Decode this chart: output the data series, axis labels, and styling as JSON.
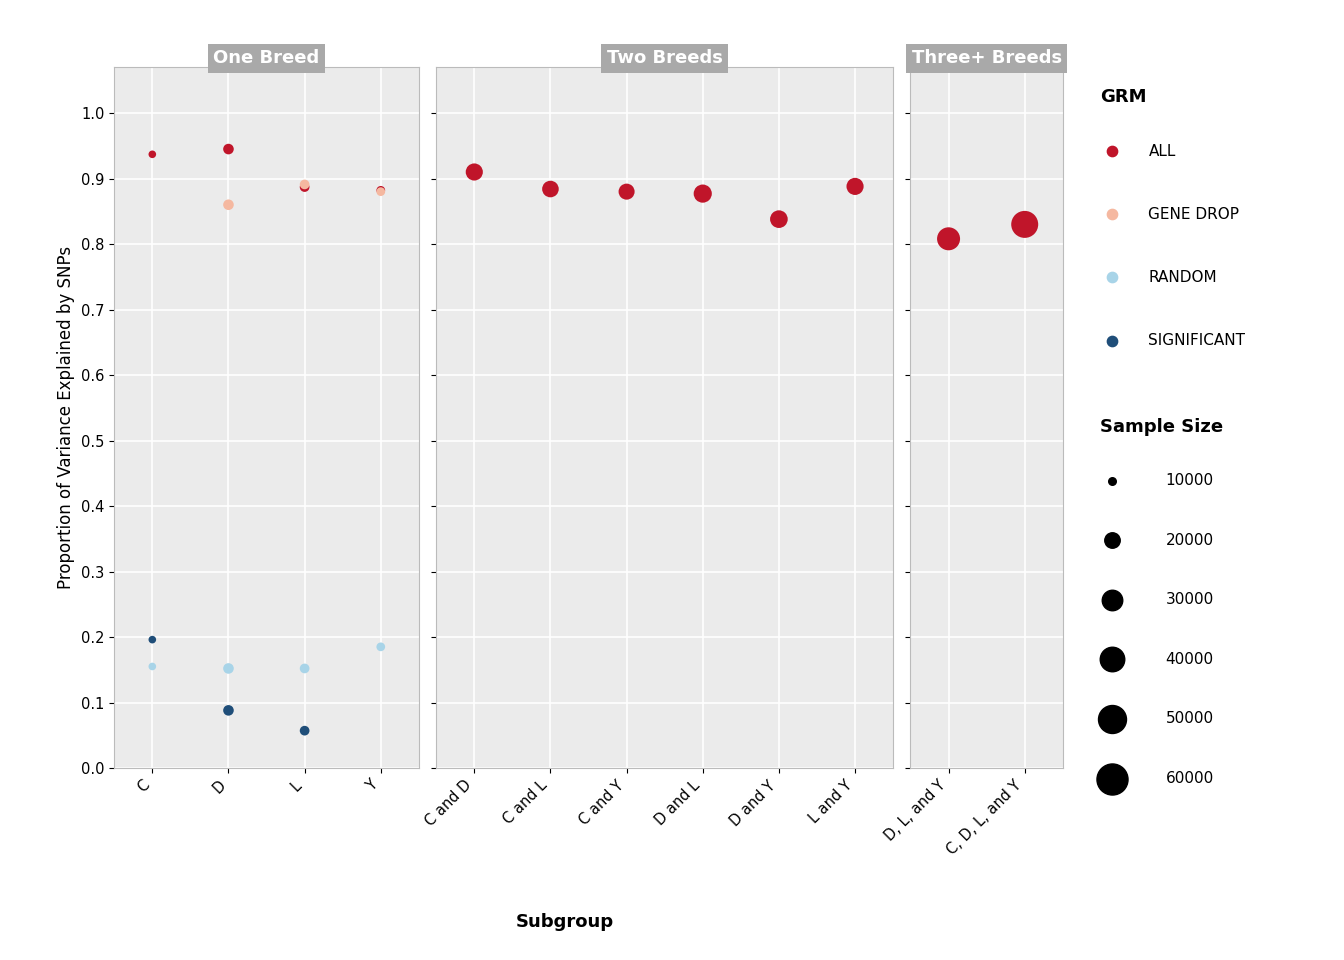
{
  "panels": [
    "One Breed",
    "Two Breeds",
    "Three+ Breeds"
  ],
  "panel_categories": {
    "One Breed": [
      "C",
      "D",
      "L",
      "Y"
    ],
    "Two Breeds": [
      "C and D",
      "C and L",
      "C and Y",
      "D and L",
      "D and Y",
      "L and Y"
    ],
    "Three+ Breeds": [
      "D, L, and Y",
      "C, D, L, and Y"
    ]
  },
  "data": [
    {
      "panel": "One Breed",
      "subgroup": "C",
      "grm": "ALL",
      "value": 0.937,
      "sample_size": 10000
    },
    {
      "panel": "One Breed",
      "subgroup": "C",
      "grm": "RANDOM",
      "value": 0.155,
      "sample_size": 10000
    },
    {
      "panel": "One Breed",
      "subgroup": "C",
      "grm": "SIGNIFICANT",
      "value": 0.196,
      "sample_size": 10000
    },
    {
      "panel": "One Breed",
      "subgroup": "D",
      "grm": "ALL",
      "value": 0.945,
      "sample_size": 13000
    },
    {
      "panel": "One Breed",
      "subgroup": "D",
      "grm": "GENE DROP",
      "value": 0.86,
      "sample_size": 13000
    },
    {
      "panel": "One Breed",
      "subgroup": "D",
      "grm": "RANDOM",
      "value": 0.152,
      "sample_size": 13000
    },
    {
      "panel": "One Breed",
      "subgroup": "D",
      "grm": "SIGNIFICANT",
      "value": 0.088,
      "sample_size": 13000
    },
    {
      "panel": "One Breed",
      "subgroup": "L",
      "grm": "ALL",
      "value": 0.887,
      "sample_size": 12000
    },
    {
      "panel": "One Breed",
      "subgroup": "L",
      "grm": "GENE DROP",
      "value": 0.891,
      "sample_size": 12000
    },
    {
      "panel": "One Breed",
      "subgroup": "L",
      "grm": "RANDOM",
      "value": 0.152,
      "sample_size": 12000
    },
    {
      "panel": "One Breed",
      "subgroup": "L",
      "grm": "SIGNIFICANT",
      "value": 0.057,
      "sample_size": 12000
    },
    {
      "panel": "One Breed",
      "subgroup": "Y",
      "grm": "ALL",
      "value": 0.882,
      "sample_size": 11000
    },
    {
      "panel": "One Breed",
      "subgroup": "Y",
      "grm": "GENE DROP",
      "value": 0.88,
      "sample_size": 11000
    },
    {
      "panel": "One Breed",
      "subgroup": "Y",
      "grm": "RANDOM",
      "value": 0.185,
      "sample_size": 11000
    },
    {
      "panel": "Two Breeds",
      "subgroup": "C and D",
      "grm": "ALL",
      "value": 0.91,
      "sample_size": 23000
    },
    {
      "panel": "Two Breeds",
      "subgroup": "C and L",
      "grm": "ALL",
      "value": 0.884,
      "sample_size": 22000
    },
    {
      "panel": "Two Breeds",
      "subgroup": "C and Y",
      "grm": "ALL",
      "value": 0.88,
      "sample_size": 21000
    },
    {
      "panel": "Two Breeds",
      "subgroup": "D and L",
      "grm": "ALL",
      "value": 0.877,
      "sample_size": 25000
    },
    {
      "panel": "Two Breeds",
      "subgroup": "D and Y",
      "grm": "ALL",
      "value": 0.838,
      "sample_size": 24000
    },
    {
      "panel": "Two Breeds",
      "subgroup": "L and Y",
      "grm": "ALL",
      "value": 0.888,
      "sample_size": 23000
    },
    {
      "panel": "Three+ Breeds",
      "subgroup": "D, L, and Y",
      "grm": "ALL",
      "value": 0.808,
      "sample_size": 36000
    },
    {
      "panel": "Three+ Breeds",
      "subgroup": "C, D, L, and Y",
      "grm": "ALL",
      "value": 0.83,
      "sample_size": 47000
    }
  ],
  "grm_colors": {
    "ALL": "#C0152A",
    "GENE DROP": "#F5B8A0",
    "RANDOM": "#A8D4E8",
    "SIGNIFICANT": "#1F4E79"
  },
  "grm_order": [
    "ALL",
    "GENE DROP",
    "RANDOM",
    "SIGNIFICANT"
  ],
  "size_legend_values": [
    10000,
    20000,
    30000,
    40000,
    50000,
    60000
  ],
  "ylabel": "Proportion of Variance Explained by SNPs",
  "xlabel": "Subgroup",
  "ylim": [
    0.0,
    1.07
  ],
  "yticks": [
    0.0,
    0.1,
    0.2,
    0.3,
    0.4,
    0.5,
    0.6,
    0.7,
    0.8,
    0.9,
    1.0
  ],
  "header_bg": "#A9A9A9",
  "panel_bg": "#EBEBEB",
  "grid_color": "#FFFFFF",
  "plot_bg": "#EBEBEB",
  "fig_bg": "#FFFFFF"
}
